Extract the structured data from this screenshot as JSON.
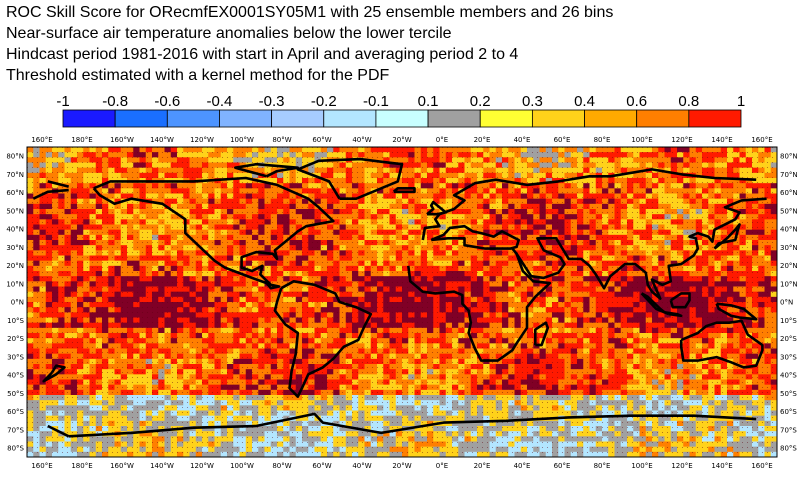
{
  "title_lines": [
    "ROC Skill Score for ORecmfEX0001SY05M1 with 25 ensemble members and 26 bins",
    "Near-surface air temperature anomalies below the lower tercile",
    "Hindcast period 1981-2016 with start in April and averaging period  2 to  4",
    "Threshold estimated with a kernel method for the PDF"
  ],
  "colorbar": {
    "labels": [
      "-1",
      "-0.8",
      "-0.6",
      "-0.4",
      "-0.3",
      "-0.2",
      "-0.1",
      "0.1",
      "0.2",
      "0.3",
      "0.4",
      "0.6",
      "0.8",
      "1"
    ],
    "colors": [
      "#1a1aff",
      "#1a6fff",
      "#4d94ff",
      "#80b3ff",
      "#a6ccff",
      "#b3e6ff",
      "#c8ffff",
      "#a0a0a0",
      "#ffff33",
      "#ffd21a",
      "#ffaa00",
      "#ff7f00",
      "#ff1a00",
      "#800026"
    ]
  },
  "map": {
    "lon_labels": [
      "160°E",
      "180°E",
      "160°W",
      "140°W",
      "120°W",
      "100°W",
      "80°W",
      "60°W",
      "40°W",
      "20°W",
      "0°E",
      "20°E",
      "40°E",
      "60°E",
      "80°E",
      "100°E",
      "120°E",
      "140°E",
      "160°E"
    ],
    "lat_labels": [
      "80°N",
      "70°N",
      "60°N",
      "50°N",
      "40°N",
      "30°N",
      "20°N",
      "10°N",
      "0°N",
      "10°S",
      "20°S",
      "30°S",
      "40°S",
      "50°S",
      "60°S",
      "70°S",
      "80°S"
    ],
    "field_description_colors": {
      "ocean_high_skill": "#800026",
      "mid_skill": "#ff1a00",
      "moderate_skill": "#ff7f00",
      "low_skill": "#ffd21a",
      "no_skill": "#a0a0a0",
      "negative_skill": "#b3e6ff"
    }
  }
}
